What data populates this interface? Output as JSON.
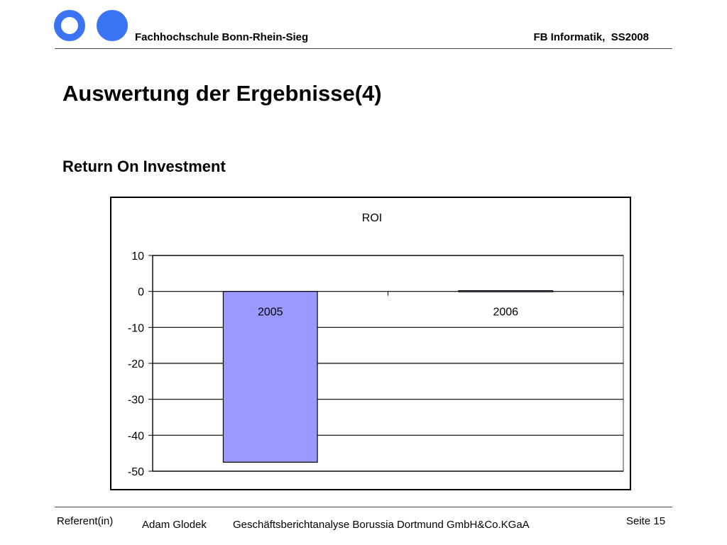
{
  "header": {
    "institution": "Fachhochschule Bonn-Rhein-Sieg",
    "department_term": "FB Informatik,  SS2008"
  },
  "slide": {
    "title": "Auswertung der Ergebnisse(4)",
    "subtitle": "Return On Investment"
  },
  "chart_data": {
    "type": "bar",
    "title": "ROI",
    "categories": [
      "2005",
      "2006"
    ],
    "values": [
      -47.5,
      0.2
    ],
    "ylim": [
      -50,
      10
    ],
    "yticks": [
      "10",
      "0",
      "-10",
      "-20",
      "-30",
      "-40",
      "-50"
    ],
    "xlabel": "",
    "ylabel": "",
    "grid": true,
    "legend": "none",
    "bar_color": "#9999ff"
  },
  "footer": {
    "referent": "Referent(in)",
    "author": "Adam Glodek",
    "document": "Geschäftsberichtanalyse Borussia Dortmund GmbH&Co.KGaA",
    "page": "Seite 15"
  }
}
